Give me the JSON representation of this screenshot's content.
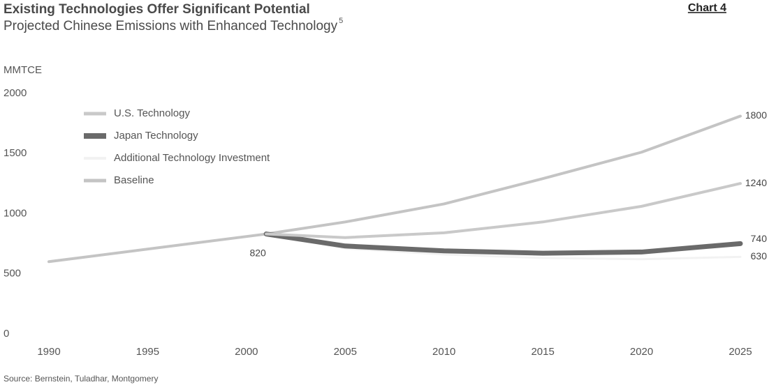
{
  "chart_data": {
    "type": "line",
    "title": "Existing Technologies Offer Significant Potential",
    "subtitle": "Projected Chinese Emissions with Enhanced Technology",
    "footnote_mark": "5",
    "chart_label": "Chart 4",
    "y_label": "MMTCE",
    "source": "Source: Bernstein, Tuladhar, Montgomery",
    "x": [
      1990,
      2001,
      2005,
      2010,
      2015,
      2020,
      2025
    ],
    "xlim": [
      1990,
      2025
    ],
    "xticks": [
      1990,
      1995,
      2000,
      2005,
      2010,
      2015,
      2020,
      2025
    ],
    "ylim": [
      0,
      2000
    ],
    "yticks": [
      0,
      500,
      1000,
      1500,
      2000
    ],
    "grid": false,
    "series": [
      {
        "name": "U.S. Technology",
        "color": "#c9c9c9",
        "width": 4,
        "values": [
          null,
          820,
          790,
          830,
          920,
          1050,
          1240
        ]
      },
      {
        "name": "Japan Technology",
        "color": "#6a6a6a",
        "width": 7,
        "values": [
          null,
          820,
          720,
          680,
          660,
          670,
          740
        ]
      },
      {
        "name": "Additional Technology Investment",
        "color": "#f2f2f2",
        "width": 3,
        "values": [
          null,
          820,
          700,
          650,
          620,
          610,
          630
        ]
      },
      {
        "name": "Baseline",
        "color": "#c4c4c4",
        "width": 4,
        "values": [
          590,
          820,
          920,
          1070,
          1280,
          1500,
          1800
        ]
      }
    ]
  }
}
